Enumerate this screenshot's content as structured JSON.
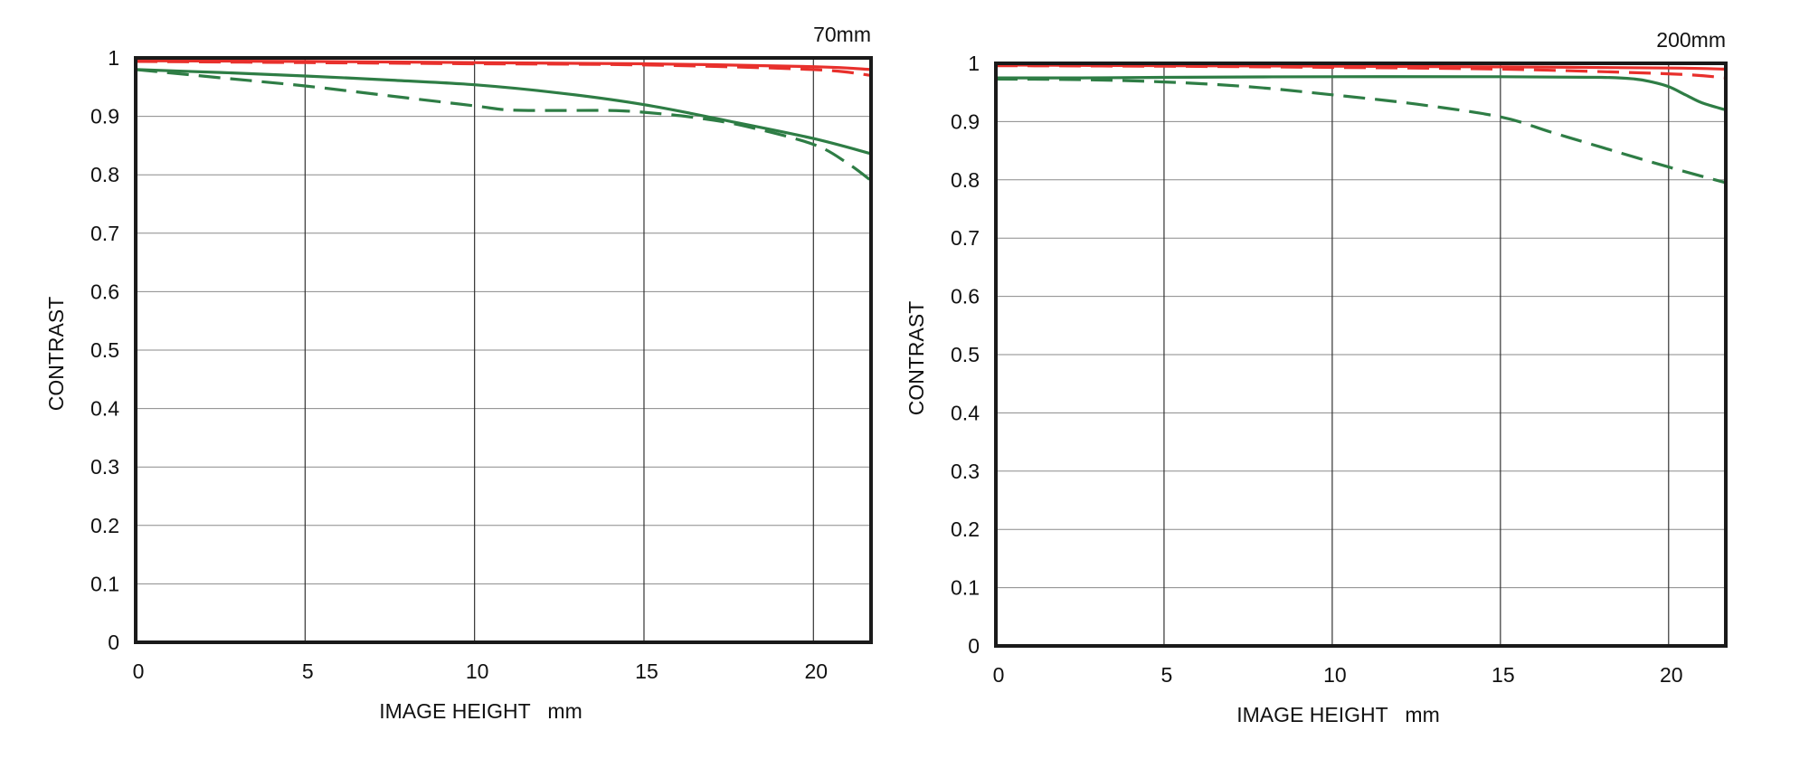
{
  "chart_data": [
    {
      "type": "line",
      "title": "70mm",
      "xlabel": "IMAGE HEIGHT   mm",
      "ylabel": "CONTRAST",
      "xlim": [
        0,
        21.7
      ],
      "ylim": [
        0,
        1
      ],
      "xticks": [
        "0",
        "5",
        "10",
        "15",
        "20"
      ],
      "yticks": [
        "0",
        "0.1",
        "0.2",
        "0.3",
        "0.4",
        "0.5",
        "0.6",
        "0.7",
        "0.8",
        "0.9",
        "1"
      ],
      "grid": true,
      "series": [
        {
          "color": "#e8302c",
          "style": "solid",
          "x": [
            0,
            5,
            10,
            15,
            20,
            21.7
          ],
          "y": [
            0.995,
            0.994,
            0.992,
            0.99,
            0.985,
            0.98
          ]
        },
        {
          "color": "#e8302c",
          "style": "dashed",
          "x": [
            0,
            5,
            10,
            15,
            20,
            21.7
          ],
          "y": [
            0.994,
            0.992,
            0.99,
            0.988,
            0.98,
            0.97
          ]
        },
        {
          "color": "#2e7d45",
          "style": "solid",
          "x": [
            0,
            2.5,
            5,
            7.5,
            10,
            12.5,
            15,
            17.5,
            20,
            21.7
          ],
          "y": [
            0.98,
            0.975,
            0.969,
            0.962,
            0.954,
            0.94,
            0.92,
            0.892,
            0.862,
            0.836
          ]
        },
        {
          "color": "#2e7d45",
          "style": "dashed",
          "x": [
            0,
            2.5,
            5,
            7.5,
            10,
            11,
            12.5,
            14,
            15,
            16.5,
            18,
            20,
            21,
            21.7
          ],
          "y": [
            0.98,
            0.966,
            0.952,
            0.935,
            0.918,
            0.911,
            0.91,
            0.91,
            0.907,
            0.898,
            0.883,
            0.852,
            0.82,
            0.79
          ]
        }
      ]
    },
    {
      "type": "line",
      "title": "200mm",
      "xlabel": "IMAGE HEIGHT   mm",
      "ylabel": "CONTRAST",
      "xlim": [
        0,
        21.7
      ],
      "ylim": [
        0,
        1
      ],
      "xticks": [
        "0",
        "5",
        "10",
        "15",
        "20"
      ],
      "yticks": [
        "0",
        "0.1",
        "0.2",
        "0.3",
        "0.4",
        "0.5",
        "0.6",
        "0.7",
        "0.8",
        "0.9",
        "1"
      ],
      "grid": true,
      "series": [
        {
          "color": "#e8302c",
          "style": "solid",
          "x": [
            0,
            5,
            10,
            15,
            20,
            21.7
          ],
          "y": [
            0.997,
            0.996,
            0.995,
            0.994,
            0.992,
            0.99
          ]
        },
        {
          "color": "#e8302c",
          "style": "dashed",
          "x": [
            0,
            5,
            10,
            15,
            20,
            21.7
          ],
          "y": [
            0.996,
            0.995,
            0.993,
            0.99,
            0.982,
            0.975
          ]
        },
        {
          "color": "#2e7d45",
          "style": "solid",
          "x": [
            0,
            2.5,
            5,
            10,
            15,
            18,
            19,
            19.5,
            20,
            20.5,
            21,
            21.7
          ],
          "y": [
            0.975,
            0.975,
            0.976,
            0.977,
            0.977,
            0.976,
            0.973,
            0.968,
            0.96,
            0.946,
            0.932,
            0.92
          ]
        },
        {
          "color": "#2e7d45",
          "style": "dashed",
          "x": [
            0,
            2.5,
            5,
            7.5,
            10,
            12.5,
            15,
            16.5,
            18,
            20,
            21.7
          ],
          "y": [
            0.973,
            0.972,
            0.968,
            0.96,
            0.946,
            0.93,
            0.908,
            0.882,
            0.856,
            0.822,
            0.795
          ]
        }
      ]
    }
  ]
}
